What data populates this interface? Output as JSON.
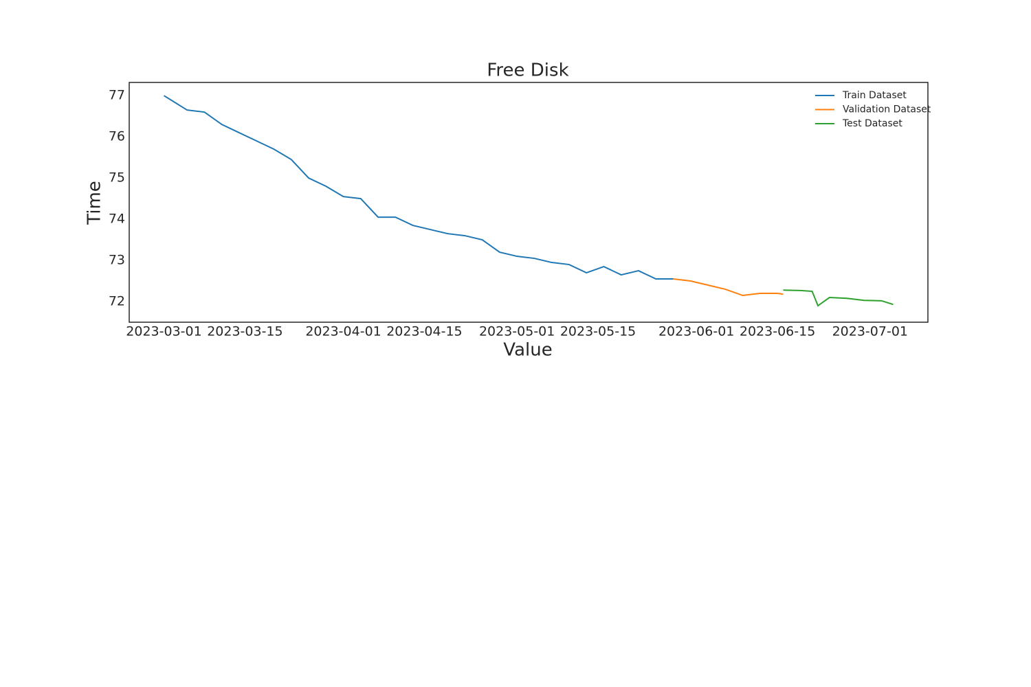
{
  "chart_data": {
    "type": "line",
    "title": "Free Disk",
    "x_label": "Value",
    "y_label": "Time",
    "xlim": [
      "2023-02-23",
      "2023-07-11"
    ],
    "xticks": [
      "2023-03-01",
      "2023-03-15",
      "2023-04-01",
      "2023-04-15",
      "2023-05-01",
      "2023-05-15",
      "2023-06-01",
      "2023-06-15",
      "2023-07-01"
    ],
    "ylim": [
      71.5,
      77.32
    ],
    "yticks": [
      72,
      73,
      74,
      75,
      76,
      77
    ],
    "grid": false,
    "legend": "upper right",
    "series": [
      {
        "name": "Train Dataset",
        "color": "#1f77b4",
        "x": [
          "2023-03-01",
          "2023-03-05",
          "2023-03-08",
          "2023-03-11",
          "2023-03-14",
          "2023-03-17",
          "2023-03-20",
          "2023-03-23",
          "2023-03-26",
          "2023-03-29",
          "2023-04-01",
          "2023-04-04",
          "2023-04-07",
          "2023-04-10",
          "2023-04-13",
          "2023-04-16",
          "2023-04-19",
          "2023-04-22",
          "2023-04-25",
          "2023-04-28",
          "2023-05-01",
          "2023-05-04",
          "2023-05-07",
          "2023-05-10",
          "2023-05-13",
          "2023-05-16",
          "2023-05-19",
          "2023-05-22",
          "2023-05-25",
          "2023-05-28"
        ],
        "values": [
          77.0,
          76.65,
          76.6,
          76.3,
          76.1,
          75.9,
          75.7,
          75.45,
          75.0,
          74.8,
          74.55,
          74.5,
          74.05,
          74.05,
          73.85,
          73.75,
          73.65,
          73.6,
          73.5,
          73.2,
          73.1,
          73.05,
          72.95,
          72.9,
          72.7,
          72.85,
          72.65,
          72.75,
          72.55,
          72.55
        ]
      },
      {
        "name": "Validation Dataset",
        "color": "#ff7f0e",
        "x": [
          "2023-05-28",
          "2023-05-31",
          "2023-06-03",
          "2023-06-06",
          "2023-06-09",
          "2023-06-12",
          "2023-06-15",
          "2023-06-16"
        ],
        "values": [
          72.55,
          72.5,
          72.4,
          72.3,
          72.15,
          72.2,
          72.2,
          72.18
        ]
      },
      {
        "name": "Test Dataset",
        "color": "#2ca02c",
        "x": [
          "2023-06-16",
          "2023-06-19",
          "2023-06-21",
          "2023-06-22",
          "2023-06-24",
          "2023-06-27",
          "2023-06-30",
          "2023-07-03",
          "2023-07-05"
        ],
        "values": [
          72.28,
          72.27,
          72.25,
          71.9,
          72.1,
          72.08,
          72.03,
          72.02,
          71.93
        ]
      }
    ]
  }
}
